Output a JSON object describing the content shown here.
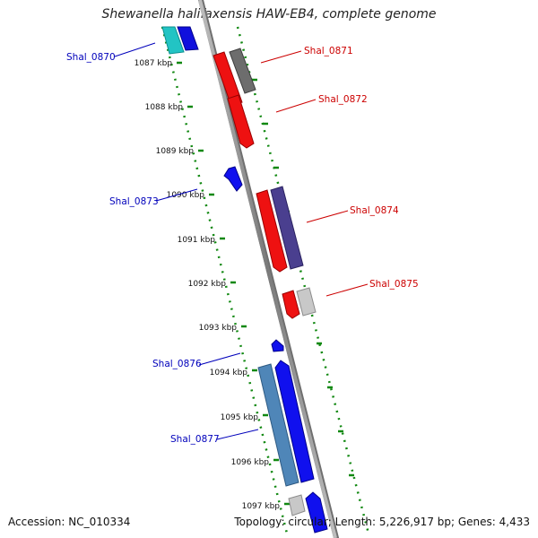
{
  "title": "Shewanella halifaxensis HAW-EB4, complete genome",
  "footer": {
    "accession": "Accession: NC_010334",
    "info": "Topology: circular; Length: 5,226,917 bp; Genes: 4,433"
  },
  "ruler": {
    "labels": [
      "1087 kbp",
      "1088 kbp",
      "1089 kbp",
      "1090 kbp",
      "1091 kbp",
      "1092 kbp",
      "1093 kbp",
      "1094 kbp",
      "1095 kbp",
      "1096 kbp",
      "1097 kbp"
    ]
  },
  "gene_labels": [
    {
      "name": "Shal_0870",
      "side": "left",
      "color": "#0000bb"
    },
    {
      "name": "Shal_0871",
      "side": "right",
      "color": "#cc0000"
    },
    {
      "name": "Shal_0872",
      "side": "right",
      "color": "#cc0000"
    },
    {
      "name": "Shal_0873",
      "side": "left",
      "color": "#0000bb"
    },
    {
      "name": "Shal_0874",
      "side": "right",
      "color": "#cc0000"
    },
    {
      "name": "Shal_0875",
      "side": "right",
      "color": "#cc0000"
    },
    {
      "name": "Shal_0876",
      "side": "left",
      "color": "#0000bb"
    },
    {
      "name": "Shal_0877",
      "side": "left",
      "color": "#0000bb"
    }
  ],
  "colors": {
    "backbone": "#8a8a8a",
    "tick_ring": "#118811",
    "forward_label": "#cc0000",
    "reverse_label": "#0000bb"
  }
}
